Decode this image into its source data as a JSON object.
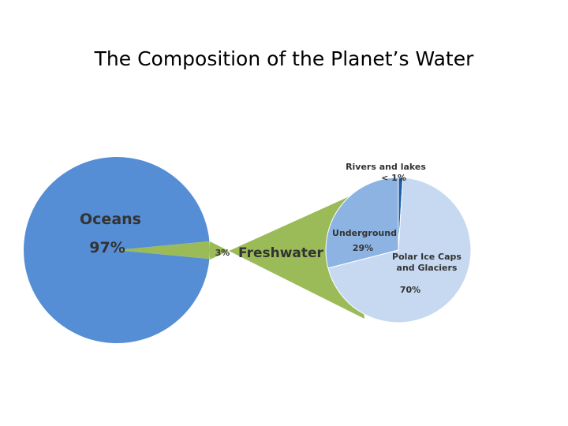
{
  "chart_data": [
    {
      "type": "pie",
      "title": "The Composition of the Planet’s Water",
      "categories": [
        "Oceans",
        "Freshwater"
      ],
      "values": [
        97,
        3
      ],
      "value_labels": [
        "97%",
        "3%"
      ],
      "colors": [
        "#558ed5",
        "#9bbb59"
      ]
    },
    {
      "type": "pie",
      "categories": [
        "Rivers and lakes",
        "Polar Ice Caps and Glaciers",
        "Underground"
      ],
      "values": [
        1,
        70,
        29
      ],
      "value_labels": [
        "< 1%",
        "70%",
        "29%"
      ],
      "colors": [
        "#1f5fa8",
        "#c6d9f1",
        "#8db3e2"
      ]
    }
  ]
}
